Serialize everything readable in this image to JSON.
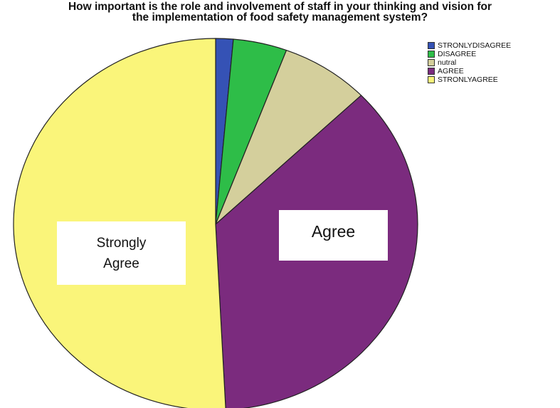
{
  "chart_data": {
    "type": "pie",
    "title_lines": [
      "How important is the role and involvement of staff in your thinking and vision for",
      "the implementation of food safety management system?"
    ],
    "legend_position": "top-right",
    "slices": [
      {
        "label": "STRONLYDISAGREE",
        "value": 1.4,
        "color": "#3552b5"
      },
      {
        "label": "DISAGREE",
        "value": 4.3,
        "color": "#2ebd48"
      },
      {
        "label": "nutral",
        "value": 7.1,
        "color": "#d4cf9c"
      },
      {
        "label": "AGREE",
        "value": 36.4,
        "color": "#7b2b7e"
      },
      {
        "label": "STRONLYAGREE",
        "value": 50.8,
        "color": "#faf57a"
      }
    ],
    "annotations": {
      "strongly_agree": "Strongly Agree",
      "agree": "Agree"
    }
  }
}
